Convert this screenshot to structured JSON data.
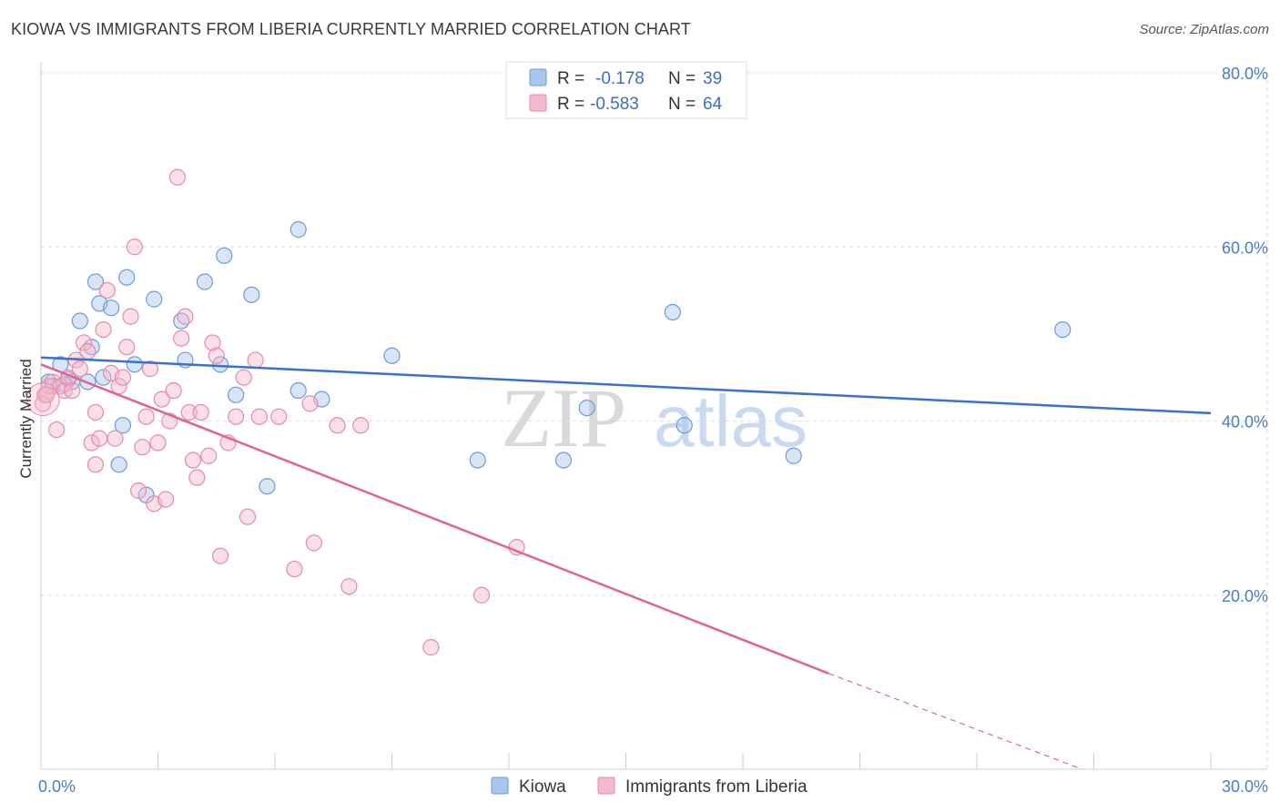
{
  "title": "KIOWA VS IMMIGRANTS FROM LIBERIA CURRENTLY MARRIED CORRELATION CHART",
  "source": "Source: ZipAtlas.com",
  "watermark": {
    "zip": "ZIP",
    "atlas": "atlas"
  },
  "colors": {
    "kiowa_fill": "#a9c6ee",
    "kiowa_stroke": "#6f9ad8",
    "kiowa_line": "#3a72c9",
    "liberia_fill": "#f5b9cc",
    "liberia_stroke": "#e58aa8",
    "liberia_line": "#e0648f",
    "axis_label": "#4a7cc7",
    "grid": "#dddddd"
  },
  "chart_data": {
    "type": "scatter",
    "title": "KIOWA VS IMMIGRANTS FROM LIBERIA CURRENTLY MARRIED CORRELATION CHART",
    "xlabel": "",
    "ylabel": "Currently Married",
    "xlim": [
      0,
      30
    ],
    "ylim": [
      0,
      80
    ],
    "x_tick_labels": [
      "0.0%",
      "30.0%"
    ],
    "y_ticks": [
      20,
      40,
      60,
      80
    ],
    "y_tick_labels": [
      "20.0%",
      "40.0%",
      "60.0%",
      "80.0%"
    ],
    "legend": [
      {
        "r_label": "R =",
        "r_value": "-0.178",
        "n_label": "N =",
        "n_value": "39"
      },
      {
        "r_label": "R =",
        "r_value": "-0.583",
        "n_label": "N =",
        "n_value": "64"
      }
    ],
    "series": [
      {
        "name": "Kiowa",
        "trend": {
          "x": [
            0,
            30
          ],
          "y": [
            47.3,
            40.9
          ]
        },
        "points": [
          [
            0.2,
            44.5
          ],
          [
            0.5,
            46.5
          ],
          [
            0.7,
            44.8
          ],
          [
            0.8,
            44.5
          ],
          [
            1.0,
            51.5
          ],
          [
            1.3,
            48.5
          ],
          [
            1.2,
            44.5
          ],
          [
            1.4,
            56.0
          ],
          [
            1.5,
            53.5
          ],
          [
            1.6,
            45.0
          ],
          [
            1.8,
            53.0
          ],
          [
            2.0,
            35.0
          ],
          [
            2.1,
            39.5
          ],
          [
            2.2,
            56.5
          ],
          [
            2.4,
            46.5
          ],
          [
            2.7,
            31.5
          ],
          [
            2.9,
            54.0
          ],
          [
            3.6,
            51.5
          ],
          [
            3.7,
            47.0
          ],
          [
            4.2,
            56.0
          ],
          [
            4.6,
            46.5
          ],
          [
            4.7,
            59.0
          ],
          [
            5.0,
            43.0
          ],
          [
            5.4,
            54.5
          ],
          [
            5.8,
            32.5
          ],
          [
            6.6,
            43.5
          ],
          [
            6.6,
            62.0
          ],
          [
            7.2,
            42.5
          ],
          [
            9.0,
            47.5
          ],
          [
            11.2,
            35.5
          ],
          [
            13.4,
            35.5
          ],
          [
            14.0,
            41.5
          ],
          [
            16.2,
            52.5
          ],
          [
            16.5,
            39.5
          ],
          [
            19.3,
            36.0
          ],
          [
            26.2,
            50.5
          ],
          [
            0.1,
            43.0
          ],
          [
            0.3,
            44.0
          ],
          [
            0.6,
            44.2
          ]
        ]
      },
      {
        "name": "Immigrants from Liberia",
        "trend": {
          "x": [
            0,
            20.2
          ],
          "y": [
            46.5,
            11.0
          ]
        },
        "trend_dashed": {
          "x": [
            20.2,
            26.7
          ],
          "y": [
            11.0,
            0
          ]
        },
        "points": [
          [
            0.1,
            43.0
          ],
          [
            0.2,
            44.0
          ],
          [
            0.3,
            44.5
          ],
          [
            0.4,
            39.0
          ],
          [
            0.5,
            44.0
          ],
          [
            0.6,
            43.5
          ],
          [
            0.7,
            45.0
          ],
          [
            0.8,
            43.5
          ],
          [
            0.9,
            47.0
          ],
          [
            1.0,
            46.0
          ],
          [
            1.1,
            49.0
          ],
          [
            1.2,
            48.0
          ],
          [
            1.3,
            37.5
          ],
          [
            1.4,
            35.0
          ],
          [
            1.4,
            41.0
          ],
          [
            1.5,
            38.0
          ],
          [
            1.6,
            50.5
          ],
          [
            1.7,
            55.0
          ],
          [
            1.8,
            45.5
          ],
          [
            1.9,
            38.0
          ],
          [
            2.0,
            44.0
          ],
          [
            2.1,
            45.0
          ],
          [
            2.2,
            48.5
          ],
          [
            2.3,
            52.0
          ],
          [
            2.4,
            60.0
          ],
          [
            2.5,
            32.0
          ],
          [
            2.6,
            37.0
          ],
          [
            2.7,
            40.5
          ],
          [
            2.8,
            46.0
          ],
          [
            2.9,
            30.5
          ],
          [
            3.0,
            37.5
          ],
          [
            3.1,
            42.5
          ],
          [
            3.2,
            31.0
          ],
          [
            3.3,
            40.0
          ],
          [
            3.4,
            43.5
          ],
          [
            3.5,
            68.0
          ],
          [
            3.6,
            49.5
          ],
          [
            3.7,
            52.0
          ],
          [
            3.8,
            41.0
          ],
          [
            3.9,
            35.5
          ],
          [
            4.0,
            33.5
          ],
          [
            4.1,
            41.0
          ],
          [
            4.3,
            36.0
          ],
          [
            4.4,
            49.0
          ],
          [
            4.5,
            47.5
          ],
          [
            4.6,
            24.5
          ],
          [
            4.8,
            37.5
          ],
          [
            5.0,
            40.5
          ],
          [
            5.2,
            45.0
          ],
          [
            5.3,
            29.0
          ],
          [
            5.5,
            47.0
          ],
          [
            5.6,
            40.5
          ],
          [
            6.1,
            40.5
          ],
          [
            6.5,
            23.0
          ],
          [
            6.9,
            42.0
          ],
          [
            7.0,
            26.0
          ],
          [
            7.6,
            39.5
          ],
          [
            7.9,
            21.0
          ],
          [
            8.2,
            39.5
          ],
          [
            10.0,
            14.0
          ],
          [
            11.3,
            20.0
          ],
          [
            12.2,
            25.5
          ],
          [
            0.05,
            42.0
          ],
          [
            0.15,
            43.0
          ]
        ]
      }
    ]
  }
}
